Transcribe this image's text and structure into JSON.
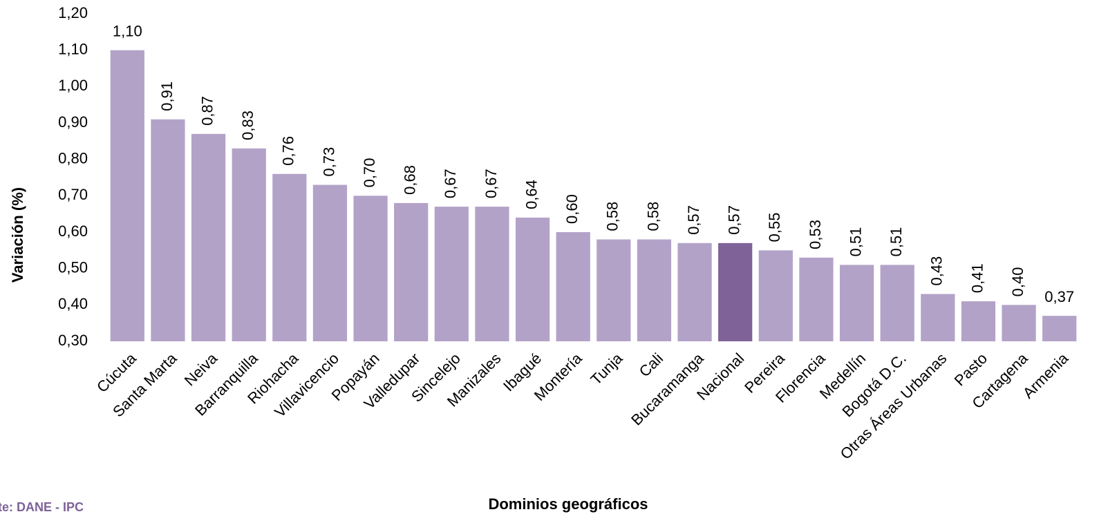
{
  "chart_data": {
    "type": "bar",
    "categories": [
      "Cúcuta",
      "Santa Marta",
      "Neiva",
      "Barranquilla",
      "Riohacha",
      "Villavicencio",
      "Popayán",
      "Valledupar",
      "Sincelejo",
      "Manizales",
      "Ibagué",
      "Montería",
      "Tunja",
      "Cali",
      "Bucaramanga",
      "Nacional",
      "Pereira",
      "Florencia",
      "Medellín",
      "Bogotá D.C.",
      "Otras Áreas Urbanas",
      "Pasto",
      "Cartagena",
      "Armenia"
    ],
    "values": [
      1.1,
      0.91,
      0.87,
      0.83,
      0.76,
      0.73,
      0.7,
      0.68,
      0.67,
      0.67,
      0.64,
      0.6,
      0.58,
      0.58,
      0.57,
      0.57,
      0.55,
      0.53,
      0.51,
      0.51,
      0.43,
      0.41,
      0.4,
      0.37
    ],
    "value_labels": [
      "1,10",
      "0,91",
      "0,87",
      "0,83",
      "0,76",
      "0,73",
      "0,70",
      "0,68",
      "0,67",
      "0,67",
      "0,64",
      "0,60",
      "0,58",
      "0,58",
      "0,57",
      "0,57",
      "0,55",
      "0,53",
      "0,51",
      "0,51",
      "0,43",
      "0,41",
      "0,40",
      "0,37"
    ],
    "colors": [
      "#b3a2c8",
      "#b3a2c8",
      "#b3a2c8",
      "#b3a2c8",
      "#b3a2c8",
      "#b3a2c8",
      "#b3a2c8",
      "#b3a2c8",
      "#b3a2c8",
      "#b3a2c8",
      "#b3a2c8",
      "#b3a2c8",
      "#b3a2c8",
      "#b3a2c8",
      "#b3a2c8",
      "#7e6298",
      "#b3a2c8",
      "#b3a2c8",
      "#b3a2c8",
      "#b3a2c8",
      "#b3a2c8",
      "#b3a2c8",
      "#b3a2c8",
      "#b3a2c8"
    ],
    "ylim": [
      0.3,
      1.2
    ],
    "yticks": [
      {
        "value": 0.3,
        "label": "0,30"
      },
      {
        "value": 0.4,
        "label": "0,40"
      },
      {
        "value": 0.5,
        "label": "0,50"
      },
      {
        "value": 0.6,
        "label": "0,60"
      },
      {
        "value": 0.7,
        "label": "0,70"
      },
      {
        "value": 0.8,
        "label": "0,80"
      },
      {
        "value": 0.9,
        "label": "0,90"
      },
      {
        "value": 1.0,
        "label": "1,00"
      },
      {
        "value": 1.1,
        "label": "1,10"
      },
      {
        "value": 1.2,
        "label": "1,20"
      }
    ],
    "y_label": "Variación (%)",
    "x_label": "Dominios geográficos",
    "source": "Fuente: DANE - IPC",
    "grid": false
  }
}
